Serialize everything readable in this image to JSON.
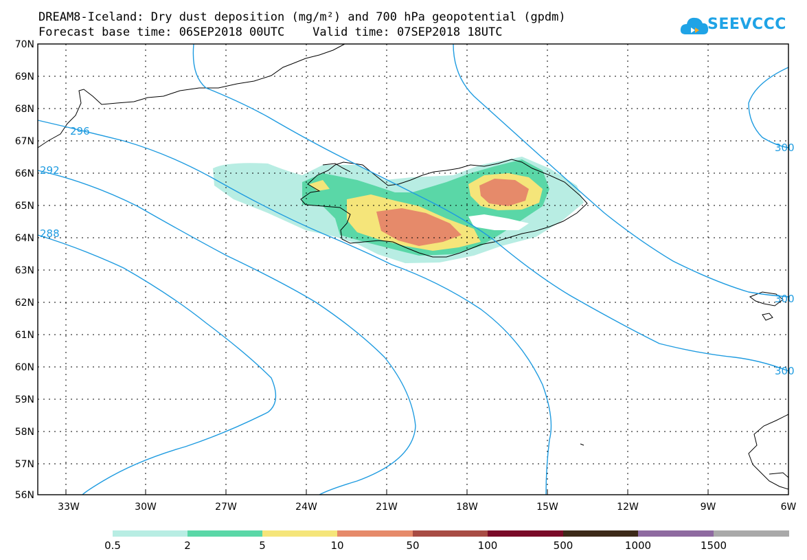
{
  "header": {
    "title_line1": "DREAM8-Iceland: Dry dust deposition (mg/m²) and 700 hPa geopotential (gpdm)",
    "title_line2": "Forecast base time: 06SEP2018 00UTC    Valid time: 07SEP2018 18UTC",
    "logo_text": "SEEVCCC"
  },
  "map": {
    "lat_labels": [
      "70N",
      "69N",
      "68N",
      "67N",
      "66N",
      "65N",
      "64N",
      "63N",
      "62N",
      "61N",
      "60N",
      "59N",
      "58N",
      "57N",
      "56N"
    ],
    "lon_labels": [
      "33W",
      "30W",
      "27W",
      "24W",
      "21W",
      "18W",
      "15W",
      "12W",
      "9W",
      "6W"
    ],
    "contour_labels": [
      "296",
      "292",
      "288",
      "300",
      "300",
      "300"
    ],
    "colors": {
      "contour": "#1e9be0",
      "coast": "#000000"
    }
  },
  "legend": {
    "labels": [
      "0.5",
      "2",
      "5",
      "10",
      "50",
      "100",
      "500",
      "1000",
      "1500"
    ],
    "colors": [
      "#b8ede3",
      "#5ad7a7",
      "#f5e57a",
      "#e68a6a",
      "#a84c44",
      "#7a0a28",
      "#3d2a18",
      "#8e6aa0",
      "#a9a9a9"
    ]
  }
}
